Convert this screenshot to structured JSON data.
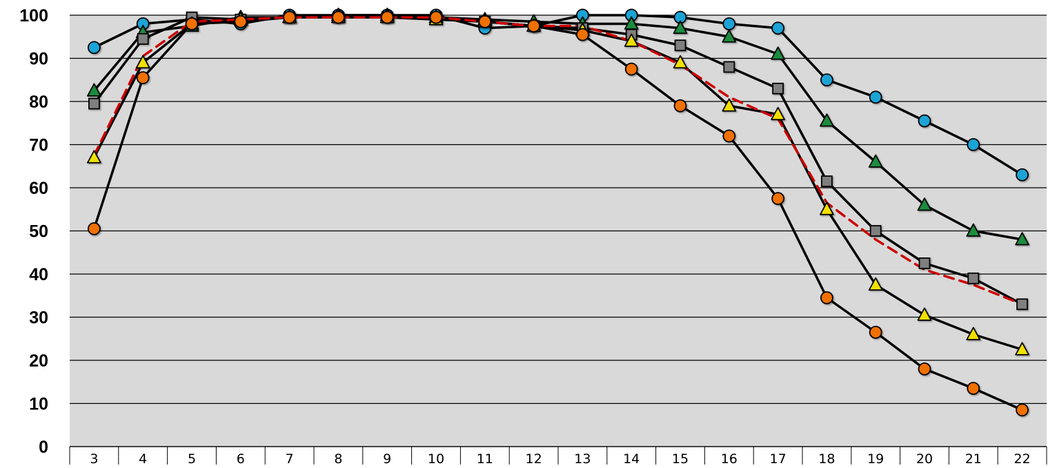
{
  "chart_data": {
    "type": "line",
    "title": "",
    "xlabel": "",
    "ylabel": "",
    "categories": [
      "3",
      "4",
      "5",
      "6",
      "7",
      "8",
      "9",
      "10",
      "11",
      "12",
      "13",
      "14",
      "15",
      "16",
      "17",
      "18",
      "19",
      "20",
      "21",
      "22"
    ],
    "ylim": [
      0,
      100
    ],
    "yticks": [
      "0",
      "10",
      "20",
      "30",
      "40",
      "50",
      "60",
      "70",
      "80",
      "90",
      "100"
    ],
    "grid": true,
    "legend": "none",
    "background_color": "#d9d9d9",
    "series": [
      {
        "marker": "circle",
        "color": "#1aa3d6",
        "line_color": "#000000",
        "values": [
          92.5,
          98,
          99,
          98,
          100,
          100,
          100,
          100,
          97,
          97.5,
          100,
          100,
          99.5,
          98,
          97,
          85,
          81,
          75.5,
          70,
          63
        ]
      },
      {
        "marker": "triangle",
        "color": "#1a8c3c",
        "line_color": "#000000",
        "values": [
          82.5,
          96,
          97.5,
          99.5,
          99.5,
          100,
          100,
          99.5,
          99,
          98.5,
          98,
          98,
          97,
          95,
          91,
          75.5,
          66,
          56,
          50,
          48
        ]
      },
      {
        "marker": "square",
        "color": "#7f7f7f",
        "line_color": "#000000",
        "values": [
          79.5,
          94.5,
          99.5,
          99,
          99.5,
          99.5,
          99.5,
          99.5,
          98.5,
          97.5,
          97,
          95.5,
          93,
          88,
          83,
          61.5,
          50,
          42.5,
          39,
          33
        ]
      },
      {
        "marker": "triangle",
        "color": "#f0e000",
        "line_color": "#000000",
        "values": [
          67,
          89,
          98,
          99,
          99.5,
          99.5,
          99.5,
          99,
          98.5,
          97.5,
          96.5,
          94,
          89,
          79,
          77,
          55,
          37.5,
          30.5,
          26,
          22.5
        ]
      },
      {
        "marker": "circle",
        "color": "#f07000",
        "line_color": "#000000",
        "values": [
          50.5,
          85.5,
          98,
          98.5,
          99.5,
          99.5,
          99.5,
          99.5,
          98.5,
          97.5,
          95.5,
          87.5,
          79,
          72,
          57.5,
          34.5,
          26.5,
          18,
          13.5,
          8.5
        ]
      },
      {
        "marker": "none",
        "style": "dashed",
        "color": "#cc0000",
        "line_color": "#cc0000",
        "values": [
          67.5,
          90.5,
          98.5,
          99,
          99.5,
          99.5,
          99.5,
          99.5,
          98.5,
          97.5,
          97.5,
          94,
          88.5,
          81,
          76,
          56.5,
          48,
          41,
          37.5,
          33
        ]
      }
    ]
  }
}
